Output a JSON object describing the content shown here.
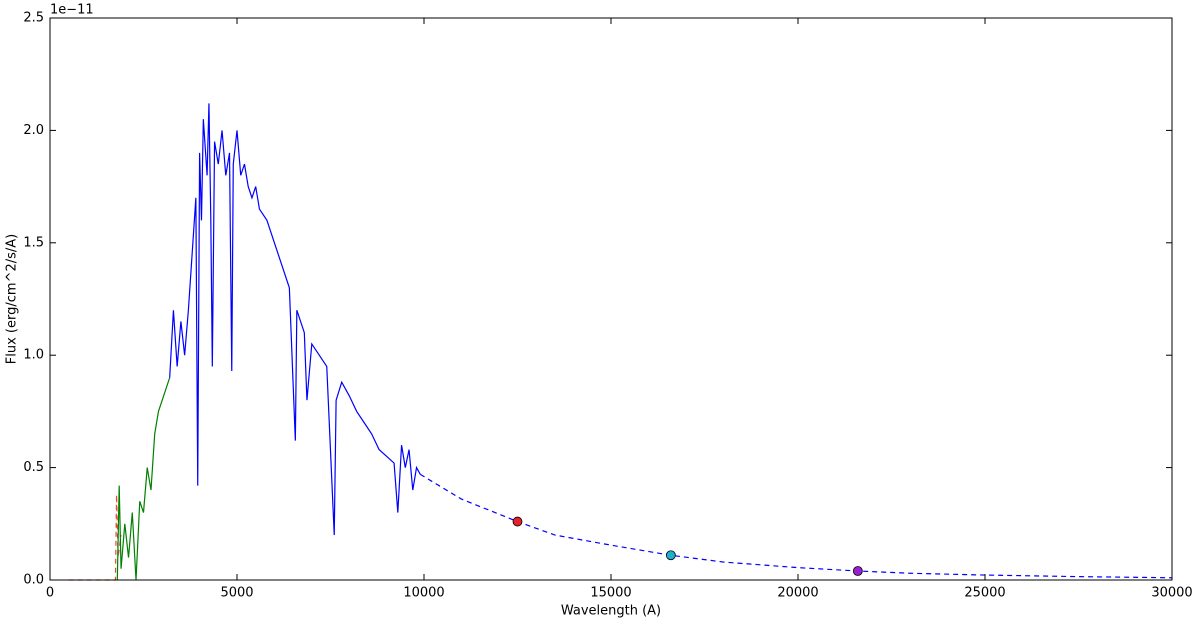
{
  "chart_data": {
    "type": "line",
    "offset_text": "1e−11",
    "xlabel": "Wavelength (A)",
    "ylabel": "Flux (erg/cm^2/s/A)",
    "xlim": [
      0,
      30000
    ],
    "ylim": [
      0,
      2.5
    ],
    "xticks": [
      0,
      5000,
      10000,
      15000,
      20000,
      25000,
      30000
    ],
    "yticks": [
      {
        "value": 0,
        "label": "0.0"
      },
      {
        "value": 0.5,
        "label": "0.5"
      },
      {
        "value": 1,
        "label": "1.0"
      },
      {
        "value": 1.5,
        "label": "1.5"
      },
      {
        "value": 2,
        "label": "2.0"
      },
      {
        "value": 2.5,
        "label": "2.5"
      }
    ],
    "series": [
      {
        "color": "#e8482c",
        "style": "dashed",
        "x": [
          500,
          1750,
          1780,
          1820,
          1900
        ],
        "values": [
          0,
          0,
          0.38,
          0.1,
          0.2
        ]
      },
      {
        "color": "#008000",
        "style": "solid",
        "x": [
          1800,
          1850,
          1900,
          2000,
          2100,
          2200,
          2300,
          2400,
          2500,
          2600,
          2700,
          2800,
          2900,
          3000,
          3100,
          3200
        ],
        "values": [
          0,
          0.42,
          0.05,
          0.25,
          0.1,
          0.3,
          0,
          0.35,
          0.3,
          0.5,
          0.4,
          0.65,
          0.75,
          0.8,
          0.85,
          0.9
        ]
      },
      {
        "color": "#0000ff",
        "style": "solid",
        "x": [
          3200,
          3300,
          3400,
          3500,
          3600,
          3700,
          3800,
          3900,
          3950,
          4000,
          4050,
          4100,
          4200,
          4250,
          4300,
          4340,
          4400,
          4500,
          4600,
          4700,
          4800,
          4860,
          4900,
          5000,
          5100,
          5200,
          5300,
          5400,
          5500,
          5600,
          5800,
          6000,
          6200,
          6400,
          6560,
          6600,
          6800,
          6870,
          7000,
          7200,
          7400,
          7600,
          7650,
          7800,
          8000,
          8200,
          8400,
          8600,
          8800,
          9000,
          9200,
          9300,
          9400,
          9500,
          9600,
          9700,
          9800,
          9900
        ],
        "values": [
          0.9,
          1.2,
          0.95,
          1.15,
          1.0,
          1.2,
          1.45,
          1.7,
          0.42,
          1.9,
          1.6,
          2.05,
          1.8,
          2.12,
          1.6,
          0.95,
          1.95,
          1.85,
          2.0,
          1.8,
          1.9,
          0.93,
          1.85,
          2.0,
          1.8,
          1.85,
          1.75,
          1.7,
          1.75,
          1.65,
          1.6,
          1.5,
          1.4,
          1.3,
          0.62,
          1.2,
          1.1,
          0.8,
          1.05,
          1.0,
          0.95,
          0.2,
          0.8,
          0.88,
          0.82,
          0.75,
          0.7,
          0.65,
          0.58,
          0.55,
          0.52,
          0.3,
          0.6,
          0.5,
          0.58,
          0.4,
          0.5,
          0.47
        ]
      },
      {
        "color": "#0000ff",
        "style": "dashed",
        "x": [
          9900,
          11000,
          12500,
          13500,
          15000,
          16600,
          18000,
          20000,
          21600,
          23000,
          25000,
          27500,
          30000
        ],
        "values": [
          0.47,
          0.36,
          0.26,
          0.2,
          0.155,
          0.11,
          0.08,
          0.055,
          0.04,
          0.03,
          0.022,
          0.015,
          0.01
        ]
      },
      {
        "style": "markers",
        "colors": [
          "#e8202a",
          "#1fb0d0",
          "#9a1fd0"
        ],
        "x": [
          12500,
          16600,
          21600
        ],
        "values": [
          0.26,
          0.11,
          0.04
        ]
      }
    ]
  }
}
